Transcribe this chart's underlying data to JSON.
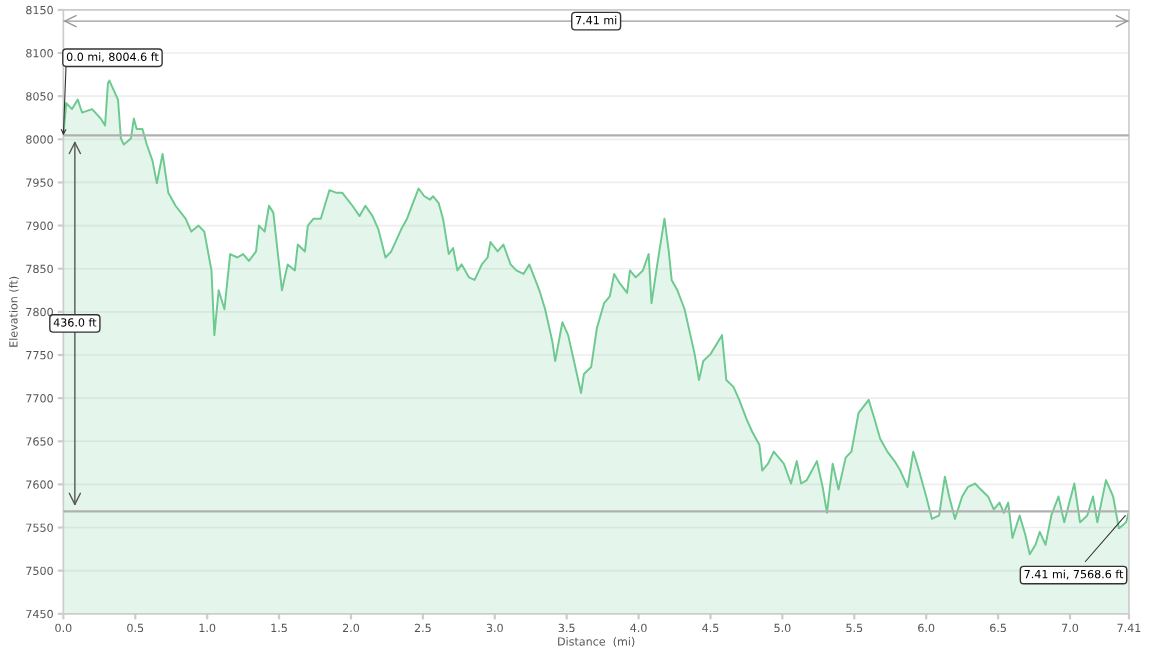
{
  "chart_data": {
    "type": "area",
    "xlabel": "Distance  (mi)",
    "ylabel": "Elevation (ft)",
    "xlim": [
      0,
      7.41
    ],
    "ylim": [
      7450,
      8150
    ],
    "xticks": [
      {
        "value": 0,
        "label": "0.0"
      },
      0.5,
      {
        "value": 1,
        "label": "1.0"
      },
      1.5,
      {
        "value": 2,
        "label": "2.0"
      },
      2.5,
      {
        "value": 3,
        "label": "3.0"
      },
      3.5,
      {
        "value": 4,
        "label": "4.0"
      },
      4.5,
      {
        "value": 5,
        "label": "5.0"
      },
      5.5,
      {
        "value": 6,
        "label": "6.0"
      },
      6.5,
      {
        "value": 7,
        "label": "7.0"
      },
      7.41
    ],
    "yticks": [
      7450,
      7500,
      7550,
      7600,
      7650,
      7700,
      7750,
      7800,
      7850,
      7900,
      7950,
      8000,
      8050,
      8100,
      8150
    ],
    "grid": "y",
    "legend": false,
    "series": [
      {
        "color": "#6cc98f",
        "x": [
          0,
          0.02,
          0.06,
          0.1,
          0.13,
          0.2,
          0.26,
          0.29,
          0.31,
          0.32,
          0.35,
          0.38,
          0.4,
          0.42,
          0.47,
          0.49,
          0.51,
          0.55,
          0.58,
          0.62,
          0.65,
          0.69,
          0.73,
          0.78,
          0.85,
          0.89,
          0.94,
          0.98,
          1.03,
          1.05,
          1.08,
          1.12,
          1.16,
          1.21,
          1.25,
          1.29,
          1.34,
          1.36,
          1.4,
          1.43,
          1.46,
          1.52,
          1.56,
          1.61,
          1.63,
          1.68,
          1.7,
          1.74,
          1.79,
          1.85,
          1.9,
          1.94,
          2.01,
          2.06,
          2.1,
          2.15,
          2.19,
          2.24,
          2.28,
          2.35,
          2.39,
          2.44,
          2.47,
          2.51,
          2.55,
          2.57,
          2.61,
          2.64,
          2.68,
          2.71,
          2.74,
          2.77,
          2.82,
          2.86,
          2.91,
          2.95,
          2.97,
          3.02,
          3.06,
          3.11,
          3.15,
          3.2,
          3.24,
          3.31,
          3.35,
          3.4,
          3.42,
          3.47,
          3.51,
          3.56,
          3.6,
          3.62,
          3.67,
          3.71,
          3.76,
          3.8,
          3.83,
          3.87,
          3.92,
          3.94,
          3.98,
          4.03,
          4.07,
          4.09,
          4.13,
          4.18,
          4.21,
          4.23,
          4.27,
          4.32,
          4.39,
          4.42,
          4.45,
          4.5,
          4.54,
          4.58,
          4.61,
          4.66,
          4.7,
          4.75,
          4.79,
          4.84,
          4.86,
          4.9,
          4.94,
          5.01,
          5.06,
          5.1,
          5.13,
          5.17,
          5.24,
          5.28,
          5.31,
          5.35,
          5.39,
          5.44,
          5.48,
          5.53,
          5.6,
          5.64,
          5.68,
          5.73,
          5.78,
          5.82,
          5.87,
          5.91,
          5.95,
          6.0,
          6.04,
          6.09,
          6.13,
          6.16,
          6.2,
          6.25,
          6.29,
          6.34,
          6.38,
          6.43,
          6.47,
          6.51,
          6.54,
          6.57,
          6.6,
          6.65,
          6.69,
          6.72,
          6.76,
          6.79,
          6.83,
          6.87,
          6.92,
          6.96,
          7.03,
          7.07,
          7.12,
          7.16,
          7.19,
          7.25,
          7.3,
          7.34,
          7.39,
          7.41
        ],
        "values": [
          8004.6,
          8042,
          8035,
          8046,
          8031,
          8035,
          8024,
          8016,
          8065,
          8068,
          8057,
          8046,
          8001,
          7994,
          8001,
          8024,
          8012,
          8012,
          7994,
          7975,
          7949,
          7983,
          7938,
          7923,
          7908,
          7893,
          7900,
          7893,
          7848,
          7773,
          7825,
          7803,
          7867,
          7863,
          7867,
          7859,
          7870,
          7900,
          7893,
          7923,
          7915,
          7825,
          7855,
          7848,
          7878,
          7870,
          7900,
          7908,
          7908,
          7941,
          7938,
          7938,
          7923,
          7911,
          7923,
          7911,
          7896,
          7863,
          7870,
          7896,
          7908,
          7930,
          7943,
          7934,
          7930,
          7934,
          7926,
          7908,
          7867,
          7874,
          7848,
          7855,
          7840,
          7837,
          7855,
          7863,
          7881,
          7870,
          7878,
          7855,
          7848,
          7844,
          7855,
          7825,
          7803,
          7766,
          7743,
          7788,
          7773,
          7736,
          7706,
          7728,
          7736,
          7781,
          7810,
          7818,
          7844,
          7833,
          7822,
          7848,
          7840,
          7848,
          7867,
          7810,
          7855,
          7908,
          7870,
          7837,
          7825,
          7803,
          7751,
          7721,
          7743,
          7751,
          7762,
          7773,
          7721,
          7713,
          7698,
          7676,
          7661,
          7646,
          7616,
          7624,
          7638,
          7624,
          7601,
          7627,
          7601,
          7605,
          7627,
          7597,
          7567,
          7624,
          7594,
          7631,
          7638,
          7683,
          7698,
          7676,
          7653,
          7638,
          7627,
          7616,
          7597,
          7638,
          7616,
          7586,
          7560,
          7564,
          7609,
          7586,
          7560,
          7586,
          7597,
          7601,
          7594,
          7586,
          7571,
          7579,
          7567,
          7579,
          7538,
          7564,
          7541,
          7519,
          7530,
          7545,
          7530,
          7564,
          7586,
          7556,
          7601,
          7556,
          7564,
          7586,
          7556,
          7605,
          7586,
          7549,
          7556,
          7568.6
        ]
      }
    ],
    "ref_lines": [
      {
        "axis": "y",
        "value": 8004.6,
        "color": "#b0b0b0"
      },
      {
        "axis": "y",
        "value": 7568.6,
        "color": "#b0b0b0"
      },
      {
        "axis": "y",
        "value": 8137,
        "label": "7.41 mi",
        "color": "#999999"
      }
    ],
    "annotations": [
      {
        "text": "0.0 mi, 8004.6 ft",
        "x": 0,
        "y": 8004.6
      },
      {
        "text": "7.41 mi, 7568.6 ft",
        "x": 7.41,
        "y": 7568.6
      },
      {
        "text": "436.0 ft",
        "x": 0.08,
        "y": 7786.6
      }
    ]
  }
}
